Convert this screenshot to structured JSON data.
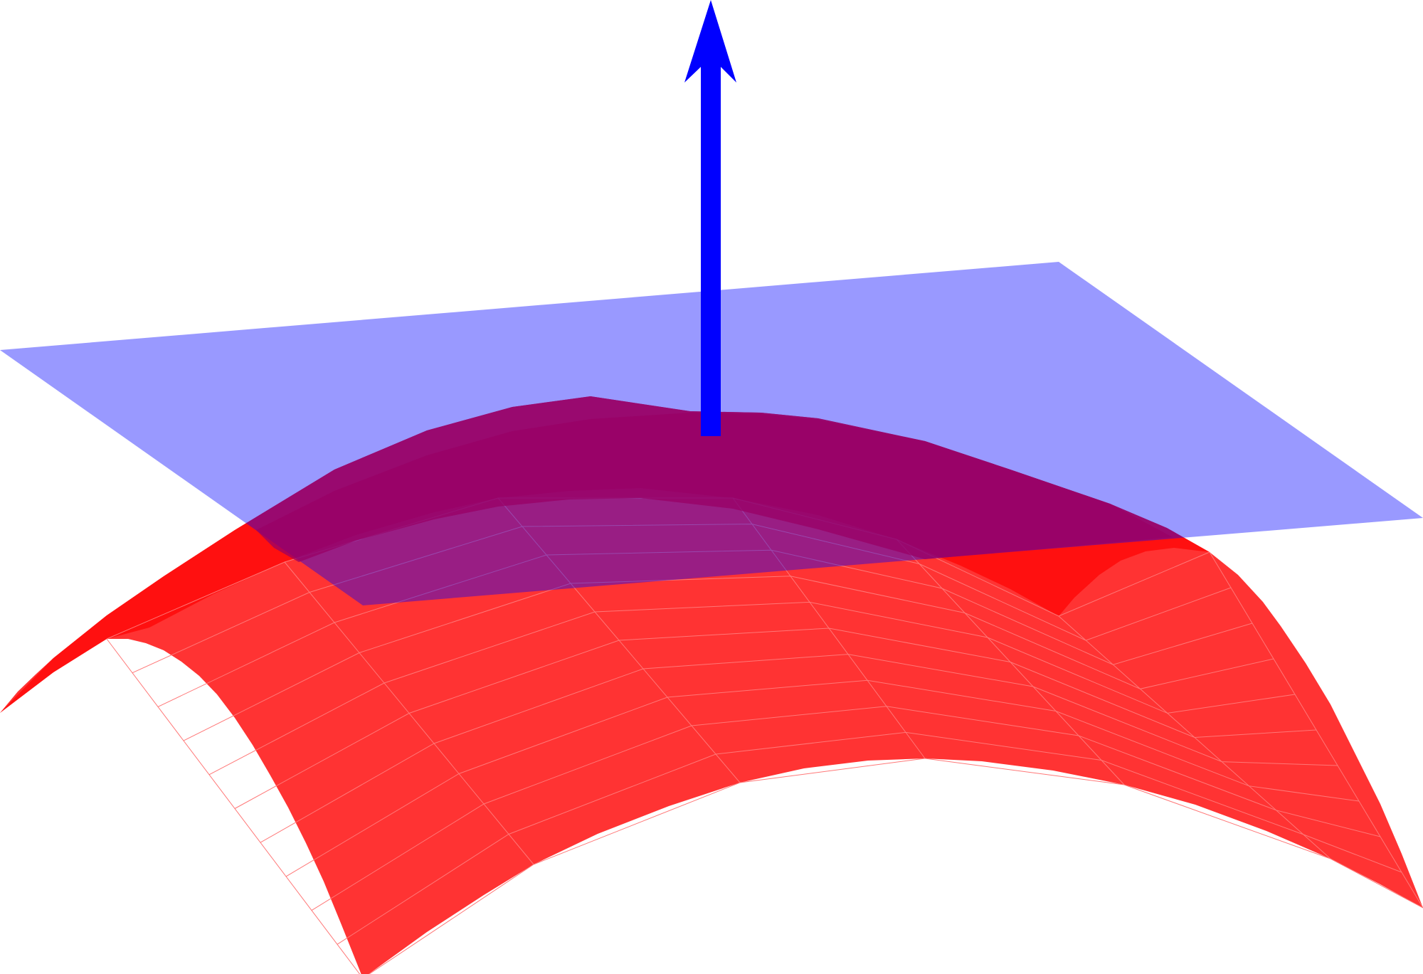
{
  "diagram": {
    "surface": {
      "name": "curved-surface",
      "color": "#ff3333",
      "edge_color": "#ff7777",
      "shadow_color": "#ff1010"
    },
    "tangent_plane": {
      "name": "tangent-plane",
      "color": "#0000ff",
      "opacity": 0.4
    },
    "normal_vector": {
      "name": "normal-vector-arrow",
      "color": "#0000ff"
    },
    "overlap_color": "#990066"
  }
}
